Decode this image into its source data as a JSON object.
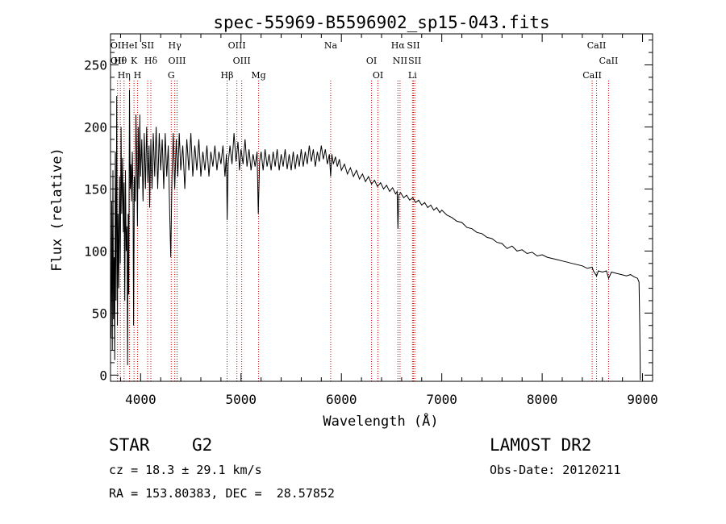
{
  "chart_data": {
    "type": "line",
    "title": "spec-55969-B5596902_sp15-043.fits",
    "xlabel": "Wavelength (Å)",
    "ylabel": "Flux (relative)",
    "xlim": [
      3700,
      9100
    ],
    "ylim": [
      -5,
      275
    ],
    "x_ticks": [
      4000,
      5000,
      6000,
      7000,
      8000,
      9000
    ],
    "y_ticks": [
      0,
      50,
      100,
      150,
      200,
      250
    ],
    "grid": false,
    "line_color": "#000000",
    "marker_color": "#cc0000",
    "series": [
      {
        "values": [
          [
            3705,
            30
          ],
          [
            3712,
            140
          ],
          [
            3718,
            20
          ],
          [
            3724,
            165
          ],
          [
            3730,
            45
          ],
          [
            3736,
            95
          ],
          [
            3742,
            12
          ],
          [
            3748,
            180
          ],
          [
            3755,
            60
          ],
          [
            3762,
            225
          ],
          [
            3768,
            40
          ],
          [
            3775,
            130
          ],
          [
            3782,
            70
          ],
          [
            3790,
            160
          ],
          [
            3797,
            90
          ],
          [
            3805,
            200
          ],
          [
            3812,
            130
          ],
          [
            3820,
            175
          ],
          [
            3828,
            115
          ],
          [
            3835,
            155
          ],
          [
            3842,
            60
          ],
          [
            3849,
            165
          ],
          [
            3856,
            100
          ],
          [
            3864,
            120
          ],
          [
            3870,
            8
          ],
          [
            3876,
            130
          ],
          [
            3882,
            65
          ],
          [
            3889,
            230
          ],
          [
            3896,
            150
          ],
          [
            3903,
            170
          ],
          [
            3910,
            140
          ],
          [
            3917,
            180
          ],
          [
            3924,
            150
          ],
          [
            3930,
            40
          ],
          [
            3938,
            160
          ],
          [
            3946,
            140
          ],
          [
            3953,
            210
          ],
          [
            3960,
            180
          ],
          [
            3968,
            120
          ],
          [
            3976,
            200
          ],
          [
            3984,
            150
          ],
          [
            3992,
            210
          ],
          [
            4000,
            160
          ],
          [
            4012,
            190
          ],
          [
            4024,
            140
          ],
          [
            4036,
            195
          ],
          [
            4048,
            150
          ],
          [
            4060,
            200
          ],
          [
            4072,
            155
          ],
          [
            4084,
            185
          ],
          [
            4090,
            135
          ],
          [
            4102,
            190
          ],
          [
            4114,
            150
          ],
          [
            4126,
            195
          ],
          [
            4140,
            160
          ],
          [
            4155,
            200
          ],
          [
            4170,
            150
          ],
          [
            4185,
            195
          ],
          [
            4200,
            165
          ],
          [
            4215,
            190
          ],
          [
            4230,
            150
          ],
          [
            4245,
            195
          ],
          [
            4260,
            160
          ],
          [
            4275,
            185
          ],
          [
            4290,
            130
          ],
          [
            4300,
            95
          ],
          [
            4312,
            160
          ],
          [
            4325,
            195
          ],
          [
            4340,
            150
          ],
          [
            4355,
            190
          ],
          [
            4370,
            160
          ],
          [
            4385,
            195
          ],
          [
            4400,
            165
          ],
          [
            4420,
            185
          ],
          [
            4440,
            150
          ],
          [
            4460,
            190
          ],
          [
            4480,
            165
          ],
          [
            4500,
            195
          ],
          [
            4520,
            160
          ],
          [
            4540,
            185
          ],
          [
            4560,
            165
          ],
          [
            4580,
            190
          ],
          [
            4600,
            160
          ],
          [
            4620,
            180
          ],
          [
            4640,
            165
          ],
          [
            4660,
            185
          ],
          [
            4680,
            160
          ],
          [
            4700,
            180
          ],
          [
            4720,
            168
          ],
          [
            4740,
            185
          ],
          [
            4760,
            165
          ],
          [
            4780,
            180
          ],
          [
            4800,
            170
          ],
          [
            4820,
            185
          ],
          [
            4840,
            160
          ],
          [
            4855,
            178
          ],
          [
            4862,
            125
          ],
          [
            4872,
            170
          ],
          [
            4890,
            185
          ],
          [
            4910,
            170
          ],
          [
            4930,
            195
          ],
          [
            4950,
            172
          ],
          [
            4970,
            188
          ],
          [
            4985,
            165
          ],
          [
            5000,
            182
          ],
          [
            5020,
            170
          ],
          [
            5040,
            190
          ],
          [
            5060,
            168
          ],
          [
            5080,
            182
          ],
          [
            5100,
            165
          ],
          [
            5120,
            178
          ],
          [
            5140,
            168
          ],
          [
            5160,
            180
          ],
          [
            5172,
            130
          ],
          [
            5185,
            172
          ],
          [
            5200,
            180
          ],
          [
            5220,
            165
          ],
          [
            5240,
            182
          ],
          [
            5260,
            168
          ],
          [
            5280,
            178
          ],
          [
            5300,
            165
          ],
          [
            5320,
            180
          ],
          [
            5340,
            168
          ],
          [
            5360,
            182
          ],
          [
            5380,
            165
          ],
          [
            5400,
            178
          ],
          [
            5420,
            168
          ],
          [
            5440,
            182
          ],
          [
            5460,
            166
          ],
          [
            5480,
            178
          ],
          [
            5500,
            165
          ],
          [
            5520,
            180
          ],
          [
            5540,
            166
          ],
          [
            5560,
            178
          ],
          [
            5580,
            168
          ],
          [
            5600,
            182
          ],
          [
            5620,
            168
          ],
          [
            5640,
            180
          ],
          [
            5660,
            170
          ],
          [
            5680,
            185
          ],
          [
            5700,
            172
          ],
          [
            5720,
            182
          ],
          [
            5740,
            168
          ],
          [
            5760,
            180
          ],
          [
            5780,
            172
          ],
          [
            5800,
            185
          ],
          [
            5820,
            174
          ],
          [
            5840,
            182
          ],
          [
            5860,
            170
          ],
          [
            5880,
            178
          ],
          [
            5893,
            160
          ],
          [
            5905,
            178
          ],
          [
            5920,
            170
          ],
          [
            5940,
            176
          ],
          [
            5960,
            168
          ],
          [
            5980,
            174
          ],
          [
            6000,
            165
          ],
          [
            6030,
            170
          ],
          [
            6060,
            162
          ],
          [
            6090,
            167
          ],
          [
            6120,
            160
          ],
          [
            6150,
            165
          ],
          [
            6180,
            158
          ],
          [
            6210,
            162
          ],
          [
            6240,
            156
          ],
          [
            6270,
            160
          ],
          [
            6300,
            154
          ],
          [
            6330,
            157
          ],
          [
            6360,
            152
          ],
          [
            6390,
            155
          ],
          [
            6420,
            150
          ],
          [
            6450,
            153
          ],
          [
            6480,
            148
          ],
          [
            6510,
            151
          ],
          [
            6540,
            146
          ],
          [
            6555,
            148
          ],
          [
            6563,
            118
          ],
          [
            6572,
            145
          ],
          [
            6590,
            147
          ],
          [
            6620,
            143
          ],
          [
            6650,
            145
          ],
          [
            6680,
            141
          ],
          [
            6710,
            143
          ],
          [
            6740,
            139
          ],
          [
            6770,
            141
          ],
          [
            6800,
            137
          ],
          [
            6830,
            139
          ],
          [
            6860,
            135
          ],
          [
            6890,
            137
          ],
          [
            6920,
            133
          ],
          [
            6950,
            135
          ],
          [
            6980,
            131
          ],
          [
            7000,
            133
          ],
          [
            7050,
            129
          ],
          [
            7100,
            127
          ],
          [
            7150,
            124
          ],
          [
            7200,
            123
          ],
          [
            7250,
            119
          ],
          [
            7300,
            118
          ],
          [
            7350,
            115
          ],
          [
            7400,
            114
          ],
          [
            7450,
            111
          ],
          [
            7500,
            110
          ],
          [
            7550,
            107
          ],
          [
            7600,
            106
          ],
          [
            7650,
            102
          ],
          [
            7700,
            104
          ],
          [
            7750,
            100
          ],
          [
            7800,
            101
          ],
          [
            7850,
            98
          ],
          [
            7900,
            99
          ],
          [
            7950,
            96
          ],
          [
            8000,
            97
          ],
          [
            8050,
            95
          ],
          [
            8100,
            94
          ],
          [
            8150,
            93
          ],
          [
            8200,
            92
          ],
          [
            8250,
            91
          ],
          [
            8300,
            90
          ],
          [
            8350,
            89
          ],
          [
            8400,
            88
          ],
          [
            8450,
            86
          ],
          [
            8498,
            87
          ],
          [
            8510,
            84
          ],
          [
            8542,
            80
          ],
          [
            8560,
            84
          ],
          [
            8600,
            83
          ],
          [
            8640,
            84
          ],
          [
            8662,
            78
          ],
          [
            8690,
            83
          ],
          [
            8740,
            82
          ],
          [
            8790,
            81
          ],
          [
            8840,
            80
          ],
          [
            8880,
            81
          ],
          [
            8920,
            79
          ],
          [
            8950,
            78
          ],
          [
            8965,
            75
          ],
          [
            8972,
            40
          ],
          [
            8978,
            -4
          ]
        ]
      }
    ],
    "line_markers": [
      {
        "wl": 3770,
        "labels": [
          "OII",
          "OII"
        ]
      },
      {
        "wl": 3798,
        "labels": [
          "Hθ"
        ]
      },
      {
        "wl": 3835,
        "labels": [
          "Hη"
        ]
      },
      {
        "wl": 3889,
        "labels": [
          "HeI"
        ]
      },
      {
        "wl": 3934,
        "labels": [
          "K"
        ]
      },
      {
        "wl": 3969,
        "labels": [
          "H"
        ]
      },
      {
        "wl": 4070,
        "labels": [
          "SII"
        ]
      },
      {
        "wl": 4102,
        "labels": [
          "Hδ"
        ]
      },
      {
        "wl": 4305,
        "labels": [
          "G"
        ]
      },
      {
        "wl": 4340,
        "labels": [
          "Hγ"
        ]
      },
      {
        "wl": 4363,
        "labels": [
          "OIII"
        ]
      },
      {
        "wl": 4861,
        "labels": [
          "Hβ"
        ]
      },
      {
        "wl": 4959,
        "labels": [
          "OIII"
        ]
      },
      {
        "wl": 5007,
        "labels": [
          "OIII"
        ]
      },
      {
        "wl": 5175,
        "labels": [
          "Mg"
        ]
      },
      {
        "wl": 5893,
        "labels": [
          "Na"
        ]
      },
      {
        "wl": 6300,
        "labels": [
          "OI"
        ]
      },
      {
        "wl": 6364,
        "labels": [
          "OI"
        ]
      },
      {
        "wl": 6563,
        "labels": [
          "Hα"
        ]
      },
      {
        "wl": 6584,
        "labels": [
          "NII"
        ]
      },
      {
        "wl": 6708,
        "labels": [
          "Li"
        ]
      },
      {
        "wl": 6717,
        "labels": [
          "SII"
        ]
      },
      {
        "wl": 6731,
        "labels": [
          "SII"
        ]
      },
      {
        "wl": 8498,
        "labels": [
          "CaII"
        ]
      },
      {
        "wl": 8542,
        "labels": [
          "CaII"
        ]
      },
      {
        "wl": 8662,
        "labels": [
          "CaII"
        ]
      }
    ]
  },
  "info": {
    "class": "STAR",
    "subclass": "G2",
    "survey": "LAMOST DR2",
    "cz": "cz = 18.3 ± 29.1 km/s",
    "obs_date": "Obs-Date: 20120211",
    "coords": "RA = 153.80383, DEC =  28.57852"
  }
}
